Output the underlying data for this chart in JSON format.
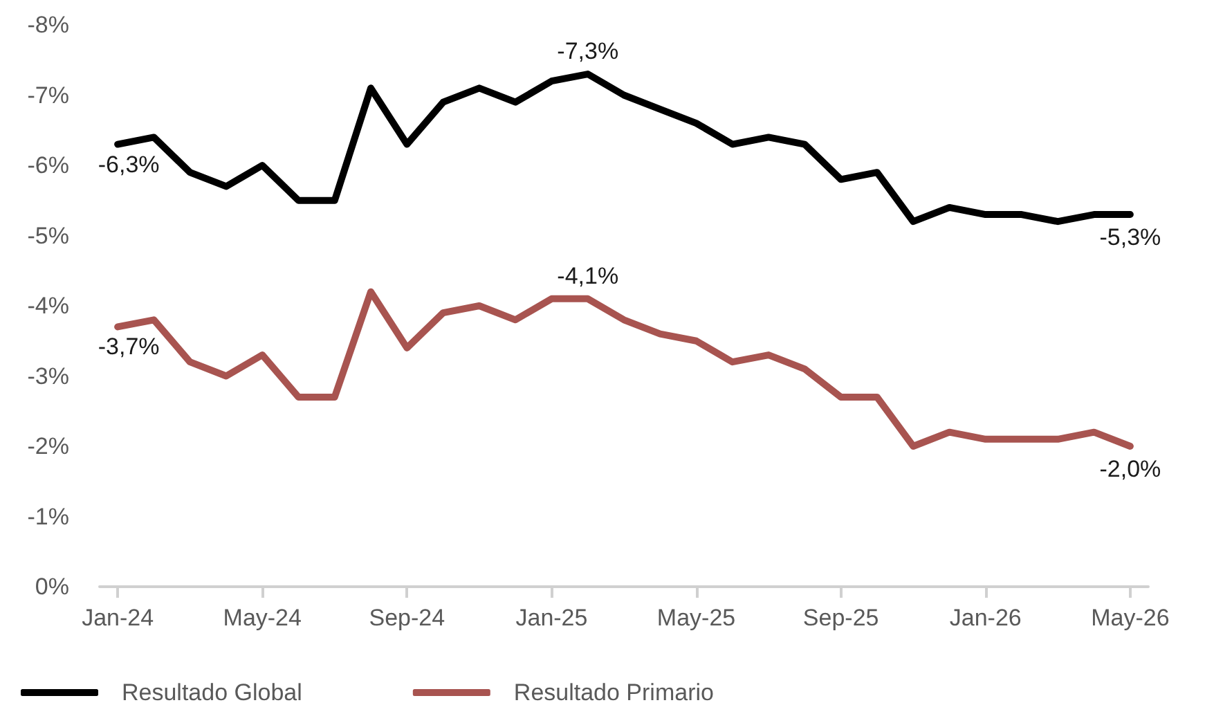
{
  "chart_data": {
    "type": "line",
    "categories": [
      "Jan-24",
      null,
      null,
      null,
      "May-24",
      null,
      null,
      null,
      "Sep-24",
      null,
      null,
      null,
      "Jan-25",
      null,
      null,
      null,
      "May-25",
      null,
      null,
      null,
      "Sep-25",
      null,
      null,
      null,
      "Jan-26",
      null,
      null,
      null,
      "May-26"
    ],
    "series": [
      {
        "name": "Resultado Global",
        "color": "#000000",
        "values": [
          -6.3,
          -6.4,
          -5.9,
          -5.7,
          -6.0,
          -5.5,
          -5.5,
          -7.1,
          -6.3,
          -6.9,
          -7.1,
          -6.9,
          -7.2,
          -7.3,
          -7.0,
          -6.8,
          -6.6,
          -6.3,
          -6.4,
          -6.3,
          -5.8,
          -5.9,
          -5.2,
          -5.4,
          -5.3,
          -5.3,
          -5.2,
          -5.3,
          -5.3
        ],
        "value_labels": [
          "-6,3%",
          null,
          null,
          null,
          null,
          null,
          null,
          null,
          null,
          null,
          null,
          null,
          null,
          "-7,3%",
          null,
          null,
          null,
          null,
          null,
          null,
          null,
          null,
          null,
          null,
          null,
          null,
          null,
          null,
          "-5,3%"
        ]
      },
      {
        "name": "Resultado Primario",
        "color": "#a85450",
        "values": [
          -3.7,
          -3.8,
          -3.2,
          -3.0,
          -3.3,
          -2.7,
          -2.7,
          -4.2,
          -3.4,
          -3.9,
          -4.0,
          -3.8,
          -4.1,
          -4.1,
          -3.8,
          -3.6,
          -3.5,
          -3.2,
          -3.3,
          -3.1,
          -2.7,
          -2.7,
          -2.0,
          -2.2,
          -2.1,
          -2.1,
          -2.1,
          -2.2,
          -2.0
        ],
        "value_labels": [
          "-3,7%",
          null,
          null,
          null,
          null,
          null,
          null,
          null,
          null,
          null,
          null,
          null,
          null,
          "-4,1%",
          null,
          null,
          null,
          null,
          null,
          null,
          null,
          null,
          null,
          null,
          null,
          null,
          null,
          null,
          "-2,0%"
        ]
      }
    ],
    "ylim": [
      0,
      -8
    ],
    "yticks": [
      {
        "value": 0,
        "label": "0%"
      },
      {
        "value": -1,
        "label": "-1%"
      },
      {
        "value": -2,
        "label": "-2%"
      },
      {
        "value": -3,
        "label": "-3%"
      },
      {
        "value": -4,
        "label": "-4%"
      },
      {
        "value": -5,
        "label": "-5%"
      },
      {
        "value": -6,
        "label": "-6%"
      },
      {
        "value": -7,
        "label": "-7%"
      },
      {
        "value": -8,
        "label": "-8%"
      }
    ],
    "grid": false,
    "legend": "bottom left",
    "marker": "none",
    "line_style": "solid"
  }
}
